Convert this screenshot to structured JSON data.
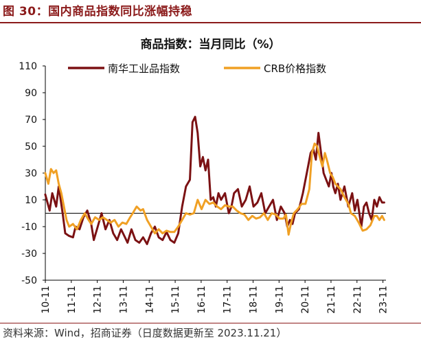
{
  "figure_title": "图 30：国内商品指数同比涨幅持稳",
  "source": "资料来源：Wind，招商证券（日度数据更新至 2023.11.21）",
  "chart_data": {
    "type": "line",
    "title": "商品指数：当月同比（%）",
    "xlabel": "",
    "ylabel": "",
    "ylim": [
      -50,
      110
    ],
    "yticks": [
      110,
      90,
      70,
      50,
      30,
      10,
      -10,
      -30,
      -50
    ],
    "xlim": [
      2010.8333,
      2023.95
    ],
    "xticks": [
      {
        "label": "10-11",
        "x": 2010.8333
      },
      {
        "label": "11-11",
        "x": 2011.8333
      },
      {
        "label": "12-11",
        "x": 2012.8333
      },
      {
        "label": "13-11",
        "x": 2013.8333
      },
      {
        "label": "14-11",
        "x": 2014.8333
      },
      {
        "label": "15-11",
        "x": 2015.8333
      },
      {
        "label": "16-11",
        "x": 2016.8333
      },
      {
        "label": "17-11",
        "x": 2017.8333
      },
      {
        "label": "18-11",
        "x": 2018.8333
      },
      {
        "label": "19-11",
        "x": 2019.8333
      },
      {
        "label": "20-11",
        "x": 2020.8333
      },
      {
        "label": "21-11",
        "x": 2021.8333
      },
      {
        "label": "22-11",
        "x": 2022.8333
      },
      {
        "label": "23-11",
        "x": 2023.8333
      }
    ],
    "legend_position": "top",
    "grid": false,
    "series": [
      {
        "name": "南华工业品指数",
        "color": "#7B1113",
        "x": [
          2010.83,
          2011.0,
          2011.1,
          2011.25,
          2011.35,
          2011.5,
          2011.6,
          2011.75,
          2011.9,
          2012.0,
          2012.15,
          2012.3,
          2012.45,
          2012.6,
          2012.7,
          2012.85,
          2013.0,
          2013.15,
          2013.3,
          2013.45,
          2013.6,
          2013.75,
          2013.9,
          2014.0,
          2014.15,
          2014.3,
          2014.45,
          2014.6,
          2014.75,
          2014.9,
          2015.05,
          2015.2,
          2015.35,
          2015.5,
          2015.65,
          2015.8,
          2015.95,
          2016.1,
          2016.25,
          2016.4,
          2016.5,
          2016.6,
          2016.7,
          2016.8,
          2016.9,
          2017.0,
          2017.1,
          2017.2,
          2017.3,
          2017.4,
          2017.5,
          2017.6,
          2017.75,
          2017.9,
          2018.0,
          2018.1,
          2018.25,
          2018.4,
          2018.55,
          2018.7,
          2018.85,
          2019.0,
          2019.15,
          2019.3,
          2019.45,
          2019.6,
          2019.75,
          2019.9,
          2020.05,
          2020.15,
          2020.25,
          2020.35,
          2020.45,
          2020.6,
          2020.75,
          2020.9,
          2021.05,
          2021.15,
          2021.25,
          2021.35,
          2021.45,
          2021.55,
          2021.65,
          2021.75,
          2021.85,
          2021.92,
          2022.0,
          2022.1,
          2022.2,
          2022.35,
          2022.5,
          2022.65,
          2022.75,
          2022.85,
          2023.0,
          2023.1,
          2023.2,
          2023.3,
          2023.4,
          2023.5,
          2023.6,
          2023.7,
          2023.8,
          2023.88
        ],
        "values": [
          14,
          2,
          15,
          5,
          20,
          0,
          -15,
          -17,
          -18,
          -10,
          -12,
          -3,
          2,
          -8,
          -20,
          -10,
          0,
          -12,
          -5,
          -15,
          -20,
          -12,
          -18,
          -22,
          -12,
          -20,
          -22,
          -18,
          -23,
          -15,
          -10,
          -18,
          -20,
          -14,
          -20,
          -22,
          -15,
          5,
          20,
          25,
          68,
          72,
          60,
          35,
          42,
          32,
          40,
          10,
          12,
          5,
          15,
          10,
          15,
          0,
          5,
          15,
          18,
          5,
          10,
          20,
          5,
          8,
          15,
          0,
          5,
          10,
          -5,
          5,
          0,
          -10,
          -5,
          -8,
          0,
          3,
          15,
          30,
          45,
          48,
          40,
          60,
          45,
          30,
          25,
          20,
          30,
          20,
          15,
          22,
          10,
          20,
          5,
          15,
          2,
          10,
          -10,
          5,
          8,
          0,
          -5,
          10,
          5,
          12,
          8,
          8
        ]
      },
      {
        "name": "CRB价格指数",
        "color": "#F0A024",
        "x": [
          2010.83,
          2010.95,
          2011.05,
          2011.15,
          2011.25,
          2011.35,
          2011.45,
          2011.55,
          2011.65,
          2011.75,
          2011.9,
          2012.05,
          2012.2,
          2012.35,
          2012.5,
          2012.6,
          2012.75,
          2012.9,
          2013.05,
          2013.2,
          2013.35,
          2013.5,
          2013.65,
          2013.8,
          2013.95,
          2014.1,
          2014.2,
          2014.35,
          2014.5,
          2014.6,
          2014.75,
          2014.9,
          2015.05,
          2015.2,
          2015.35,
          2015.5,
          2015.65,
          2015.8,
          2015.95,
          2016.1,
          2016.25,
          2016.4,
          2016.55,
          2016.7,
          2016.85,
          2017.0,
          2017.15,
          2017.3,
          2017.45,
          2017.6,
          2017.75,
          2017.9,
          2018.05,
          2018.2,
          2018.35,
          2018.5,
          2018.65,
          2018.8,
          2018.95,
          2019.1,
          2019.25,
          2019.4,
          2019.55,
          2019.7,
          2019.85,
          2020.0,
          2020.1,
          2020.2,
          2020.3,
          2020.4,
          2020.55,
          2020.7,
          2020.85,
          2021.0,
          2021.1,
          2021.2,
          2021.3,
          2021.4,
          2021.5,
          2021.6,
          2021.7,
          2021.8,
          2021.9,
          2022.0,
          2022.1,
          2022.2,
          2022.35,
          2022.5,
          2022.6,
          2022.75,
          2022.9,
          2023.05,
          2023.2,
          2023.35,
          2023.5,
          2023.6,
          2023.7,
          2023.8,
          2023.88
        ],
        "values": [
          30,
          22,
          33,
          30,
          32,
          22,
          15,
          5,
          -5,
          -10,
          -8,
          -12,
          -5,
          0,
          -5,
          -8,
          -3,
          -5,
          -3,
          -5,
          -7,
          -5,
          -10,
          -7,
          -8,
          -3,
          0,
          5,
          2,
          3,
          -5,
          -10,
          -15,
          -12,
          -15,
          -13,
          -14,
          -14,
          -10,
          -5,
          0,
          -1,
          0,
          10,
          3,
          10,
          7,
          8,
          5,
          3,
          6,
          5,
          5,
          2,
          0,
          -1,
          -5,
          -2,
          -4,
          -3,
          0,
          -5,
          0,
          -1,
          -4,
          -4,
          -1,
          -16,
          -7,
          0,
          3,
          7,
          7,
          18,
          45,
          52,
          50,
          42,
          35,
          45,
          38,
          30,
          27,
          22,
          20,
          18,
          12,
          7,
          0,
          -2,
          -7,
          -13,
          -12,
          -9,
          -2,
          -2,
          -5,
          -2,
          -5
        ]
      }
    ]
  }
}
